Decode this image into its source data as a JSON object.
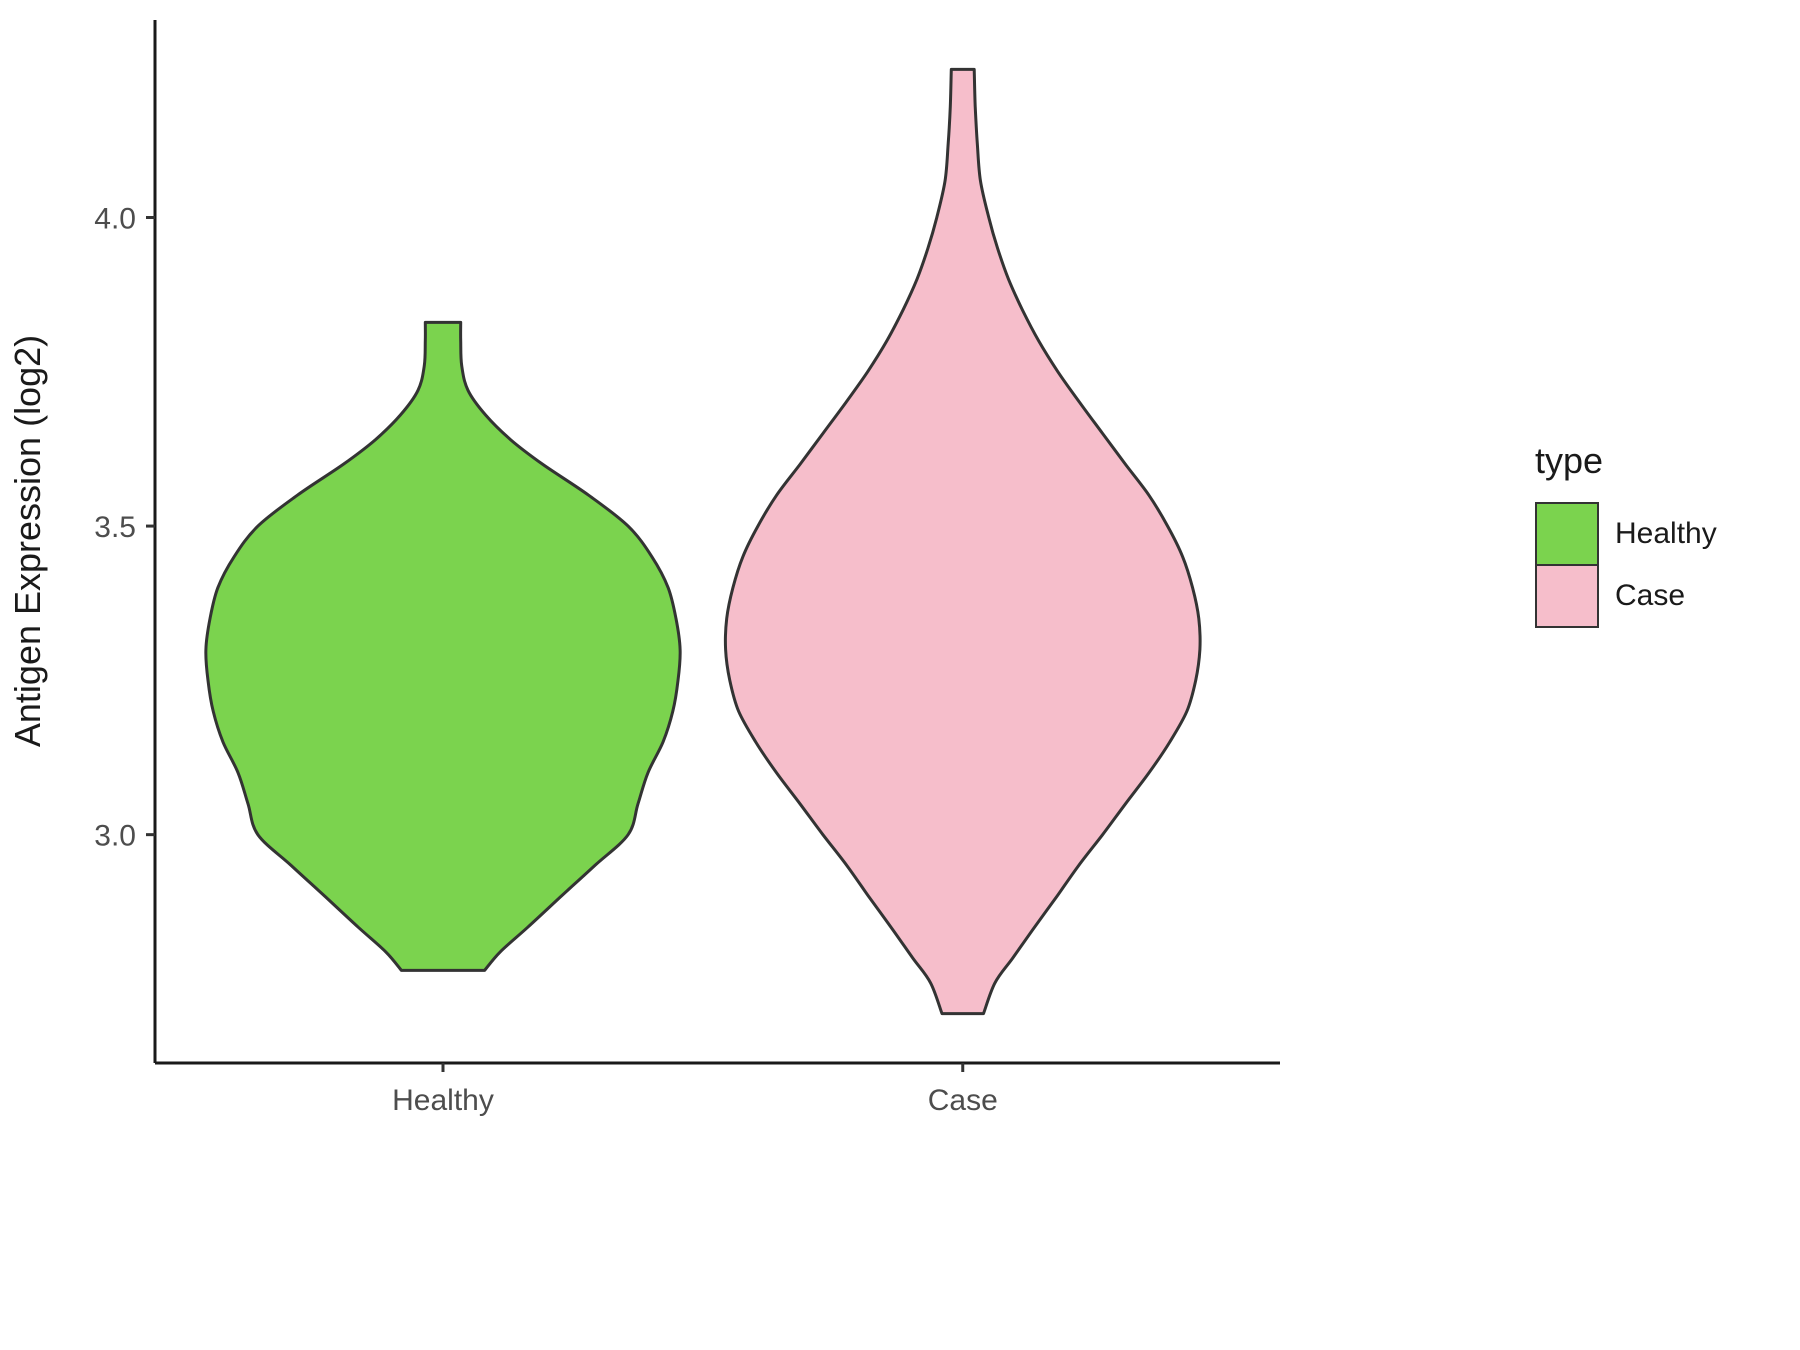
{
  "chart_data": {
    "type": "violin",
    "title": "",
    "xlabel": "",
    "ylabel": "Antigen Expression (log2)",
    "categories": [
      "Healthy",
      "Case"
    ],
    "ylim": [
      2.63,
      4.32
    ],
    "grid": false,
    "y_ticks": [
      {
        "value": 4.0,
        "label": "4.0"
      },
      {
        "value": 3.5,
        "label": "3.5"
      },
      {
        "value": 3.0,
        "label": "3.0"
      }
    ],
    "axis_color": "#1a1a1a",
    "tick_label_color": "#4d4d4d",
    "legend": {
      "title": "type",
      "position": "right",
      "entries": [
        {
          "label": "Healthy",
          "color": "#7bd34e"
        },
        {
          "label": "Case",
          "color": "#f6becb"
        }
      ]
    },
    "series": [
      {
        "name": "Healthy",
        "fill": "#7bd34e",
        "outline": "#333333",
        "density_profile": [
          [
            3.83,
            0.034
          ],
          [
            3.8,
            0.034
          ],
          [
            3.76,
            0.036
          ],
          [
            3.72,
            0.048
          ],
          [
            3.68,
            0.082
          ],
          [
            3.64,
            0.13
          ],
          [
            3.6,
            0.192
          ],
          [
            3.55,
            0.28
          ],
          [
            3.5,
            0.356
          ],
          [
            3.45,
            0.402
          ],
          [
            3.4,
            0.433
          ],
          [
            3.35,
            0.448
          ],
          [
            3.3,
            0.456
          ],
          [
            3.25,
            0.452
          ],
          [
            3.2,
            0.442
          ],
          [
            3.15,
            0.423
          ],
          [
            3.1,
            0.394
          ],
          [
            3.05,
            0.375
          ],
          [
            3.0,
            0.356
          ],
          [
            2.95,
            0.292
          ],
          [
            2.9,
            0.227
          ],
          [
            2.85,
            0.163
          ],
          [
            2.81,
            0.11
          ],
          [
            2.78,
            0.08
          ]
        ]
      },
      {
        "name": "Case",
        "fill": "#f6becb",
        "outline": "#333333",
        "density_profile": [
          [
            4.24,
            0.022
          ],
          [
            4.18,
            0.024
          ],
          [
            4.12,
            0.028
          ],
          [
            4.06,
            0.034
          ],
          [
            4.0,
            0.05
          ],
          [
            3.95,
            0.067
          ],
          [
            3.9,
            0.088
          ],
          [
            3.85,
            0.115
          ],
          [
            3.8,
            0.146
          ],
          [
            3.75,
            0.183
          ],
          [
            3.7,
            0.225
          ],
          [
            3.65,
            0.269
          ],
          [
            3.6,
            0.313
          ],
          [
            3.55,
            0.358
          ],
          [
            3.5,
            0.394
          ],
          [
            3.45,
            0.423
          ],
          [
            3.4,
            0.442
          ],
          [
            3.35,
            0.454
          ],
          [
            3.3,
            0.456
          ],
          [
            3.25,
            0.448
          ],
          [
            3.2,
            0.431
          ],
          [
            3.15,
            0.398
          ],
          [
            3.1,
            0.358
          ],
          [
            3.05,
            0.313
          ],
          [
            3.0,
            0.269
          ],
          [
            2.95,
            0.223
          ],
          [
            2.9,
            0.181
          ],
          [
            2.85,
            0.138
          ],
          [
            2.8,
            0.096
          ],
          [
            2.76,
            0.062
          ],
          [
            2.71,
            0.04
          ]
        ]
      }
    ]
  }
}
